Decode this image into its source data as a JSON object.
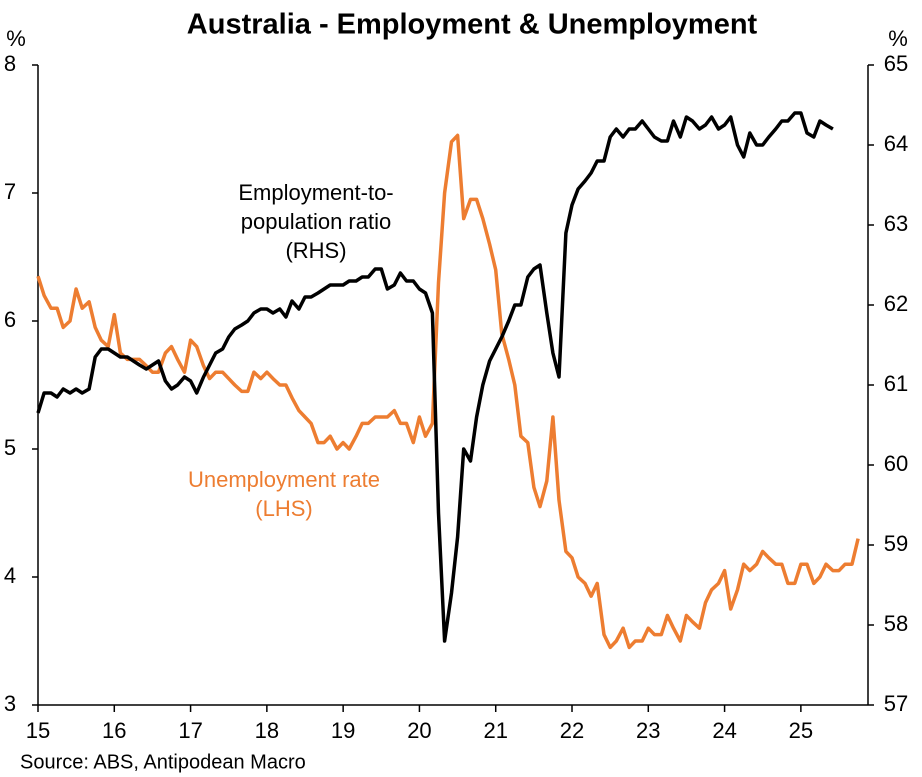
{
  "chart_data": {
    "type": "line",
    "title": "Australia - Employment & Unemployment",
    "y_unit": "%",
    "y2_unit": "%",
    "source": "Source: ABS, Antipodean Macro",
    "annotations": [
      {
        "series": 1,
        "lines": [
          "Employment-to-",
          "population ratio",
          "(RHS)"
        ]
      },
      {
        "series": 0,
        "lines": [
          "Unemployment rate",
          "(LHS)"
        ]
      }
    ],
    "x": [
      15,
      15.08,
      15.17,
      15.25,
      15.33,
      15.42,
      15.5,
      15.58,
      15.67,
      15.75,
      15.83,
      15.92,
      16,
      16.08,
      16.17,
      16.25,
      16.33,
      16.42,
      16.5,
      16.58,
      16.67,
      16.75,
      16.83,
      16.92,
      17,
      17.08,
      17.17,
      17.25,
      17.33,
      17.42,
      17.5,
      17.58,
      17.67,
      17.75,
      17.83,
      17.92,
      18,
      18.08,
      18.17,
      18.25,
      18.33,
      18.42,
      18.5,
      18.58,
      18.67,
      18.75,
      18.83,
      18.92,
      19,
      19.08,
      19.17,
      19.25,
      19.33,
      19.42,
      19.5,
      19.58,
      19.67,
      19.75,
      19.83,
      19.92,
      20,
      20.08,
      20.17,
      20.25,
      20.33,
      20.42,
      20.5,
      20.58,
      20.67,
      20.75,
      20.83,
      20.92,
      21,
      21.08,
      21.17,
      21.25,
      21.33,
      21.42,
      21.5,
      21.58,
      21.67,
      21.75,
      21.83,
      21.92,
      22,
      22.08,
      22.17,
      22.25,
      22.33,
      22.42,
      22.5,
      22.58,
      22.67,
      22.75,
      22.83,
      22.92,
      23,
      23.08,
      23.17,
      23.25,
      23.33,
      23.42,
      23.5,
      23.58,
      23.67,
      23.75,
      23.83,
      23.92,
      24,
      24.08,
      24.17,
      24.25,
      24.33,
      24.42,
      24.5,
      24.58,
      24.67,
      24.75,
      24.83,
      24.92,
      25,
      25.08,
      25.17,
      25.25,
      25.33,
      25.42,
      25.5,
      25.58,
      25.67,
      25.75
    ],
    "series": [
      {
        "name": "Unemployment rate",
        "color": "#ed7d31",
        "axis": "y",
        "values": [
          6.35,
          6.2,
          6.1,
          6.1,
          5.95,
          6.0,
          6.25,
          6.1,
          6.15,
          5.95,
          5.85,
          5.8,
          6.05,
          5.75,
          5.7,
          5.7,
          5.7,
          5.65,
          5.6,
          5.6,
          5.75,
          5.8,
          5.7,
          5.6,
          5.85,
          5.8,
          5.65,
          5.55,
          5.6,
          5.6,
          5.55,
          5.5,
          5.45,
          5.45,
          5.6,
          5.55,
          5.6,
          5.55,
          5.5,
          5.5,
          5.4,
          5.3,
          5.25,
          5.2,
          5.05,
          5.05,
          5.1,
          5.0,
          5.05,
          5.0,
          5.1,
          5.2,
          5.2,
          5.25,
          5.25,
          5.25,
          5.3,
          5.2,
          5.2,
          5.05,
          5.25,
          5.1,
          5.2,
          6.3,
          7.0,
          7.4,
          7.45,
          6.8,
          6.95,
          6.95,
          6.8,
          6.6,
          6.4,
          5.9,
          5.7,
          5.5,
          5.1,
          5.05,
          4.7,
          4.55,
          4.75,
          5.25,
          4.6,
          4.2,
          4.15,
          4.0,
          3.95,
          3.85,
          3.95,
          3.55,
          3.45,
          3.5,
          3.6,
          3.45,
          3.5,
          3.5,
          3.6,
          3.55,
          3.55,
          3.7,
          3.6,
          3.5,
          3.7,
          3.65,
          3.6,
          3.8,
          3.9,
          3.95,
          4.05,
          3.75,
          3.9,
          4.1,
          4.05,
          4.1,
          4.2,
          4.15,
          4.1,
          4.1,
          3.95,
          3.95,
          4.1,
          4.1,
          3.95,
          4.0,
          4.1,
          4.05,
          4.05,
          4.1,
          4.1,
          4.3
        ]
      },
      {
        "name": "Employment-to-population ratio",
        "color": "#000000",
        "axis": "y2",
        "values": [
          60.65,
          60.9,
          60.9,
          60.85,
          60.95,
          60.9,
          60.95,
          60.9,
          60.95,
          61.35,
          61.45,
          61.45,
          61.4,
          61.35,
          61.35,
          61.3,
          61.25,
          61.2,
          61.25,
          61.3,
          61.05,
          60.95,
          61.0,
          61.1,
          61.05,
          60.9,
          61.1,
          61.25,
          61.4,
          61.45,
          61.6,
          61.7,
          61.75,
          61.8,
          61.9,
          61.95,
          61.95,
          61.9,
          61.95,
          61.85,
          62.05,
          61.95,
          62.1,
          62.1,
          62.15,
          62.2,
          62.25,
          62.25,
          62.25,
          62.3,
          62.3,
          62.35,
          62.35,
          62.45,
          62.45,
          62.2,
          62.25,
          62.4,
          62.3,
          62.3,
          62.2,
          62.15,
          61.9,
          59.4,
          57.8,
          58.4,
          59.1,
          60.2,
          60.05,
          60.6,
          61.0,
          61.3,
          61.45,
          61.6,
          61.8,
          62.0,
          62.0,
          62.35,
          62.45,
          62.5,
          61.9,
          61.4,
          61.1,
          62.9,
          63.25,
          63.45,
          63.55,
          63.65,
          63.8,
          63.8,
          64.1,
          64.2,
          64.1,
          64.2,
          64.2,
          64.3,
          64.2,
          64.1,
          64.05,
          64.05,
          64.3,
          64.1,
          64.35,
          64.3,
          64.2,
          64.25,
          64.35,
          64.2,
          64.25,
          64.35,
          64.0,
          63.85,
          64.15,
          64.0,
          64.0,
          64.1,
          64.2,
          64.3,
          64.3,
          64.4,
          64.4,
          64.15,
          64.1,
          64.3,
          64.25,
          64.2,
          null,
          null,
          null,
          null
        ]
      }
    ],
    "xlim": [
      15,
      25.88
    ],
    "xticks": [
      15,
      16,
      17,
      18,
      19,
      20,
      21,
      22,
      23,
      24,
      25
    ],
    "ylim": [
      3,
      8
    ],
    "yticks": [
      3,
      4,
      5,
      6,
      7,
      8
    ],
    "y2lim": [
      57,
      65
    ],
    "y2ticks": [
      57,
      58,
      59,
      60,
      61,
      62,
      63,
      64,
      65
    ]
  }
}
